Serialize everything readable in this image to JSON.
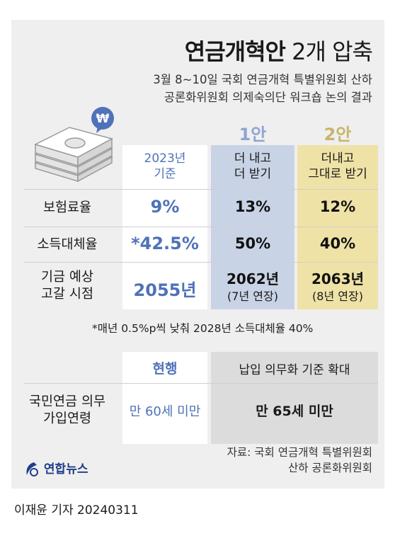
{
  "title": {
    "bold": "연금개혁안",
    "light": " 2개 압축"
  },
  "subtitle": [
    "3월 8~10일 국회 연금개혁 특별위원회 산하",
    "공론화위원회 의제숙의단 워크숍 논의 결과"
  ],
  "icon": {
    "won_badge": "₩"
  },
  "columns": {
    "baseline": [
      "2023년",
      "기준"
    ],
    "plan1": {
      "label": "1안",
      "desc": [
        "더 내고",
        "더 받기"
      ]
    },
    "plan2": {
      "label": "2안",
      "desc": [
        "더내고",
        "그대로 받기"
      ]
    }
  },
  "rows": [
    {
      "label": [
        "보험료율"
      ],
      "baseline": "9%",
      "plan1": "13%",
      "plan2": "12%"
    },
    {
      "label": [
        "소득대체율"
      ],
      "baseline": "*42.5%",
      "plan1": "50%",
      "plan2": "40%"
    },
    {
      "label": [
        "기금 예상",
        "고갈 시점"
      ],
      "baseline": "2055년",
      "plan1": "2062년",
      "plan1_sub": "(7년 연장)",
      "plan2": "2063년",
      "plan2_sub": "(8년 연장)"
    }
  ],
  "note": "*매년 0.5%p씩 낮춰 2028년 소득대체율 40%",
  "age_table": {
    "current_header": "현행",
    "expand_header": "납입 의무화 기준 확대",
    "row_label": [
      "국민연금 의무",
      "가입연령"
    ],
    "current_value": "만 60세 미만",
    "expand_value": "만 65세 미만"
  },
  "source": [
    "자료: 국회 연금개혁 특별위원회",
    "산하 공론화위원회"
  ],
  "logo": "연합뉴스",
  "byline": "이재윤 기자  20240311",
  "colors": {
    "blue": "#4f72b8",
    "plan1_bg": "#c9d3e6",
    "plan2_bg": "#efe2a6",
    "plan2_label": "#c8b56a",
    "plan1_label": "#8ea5d3"
  }
}
